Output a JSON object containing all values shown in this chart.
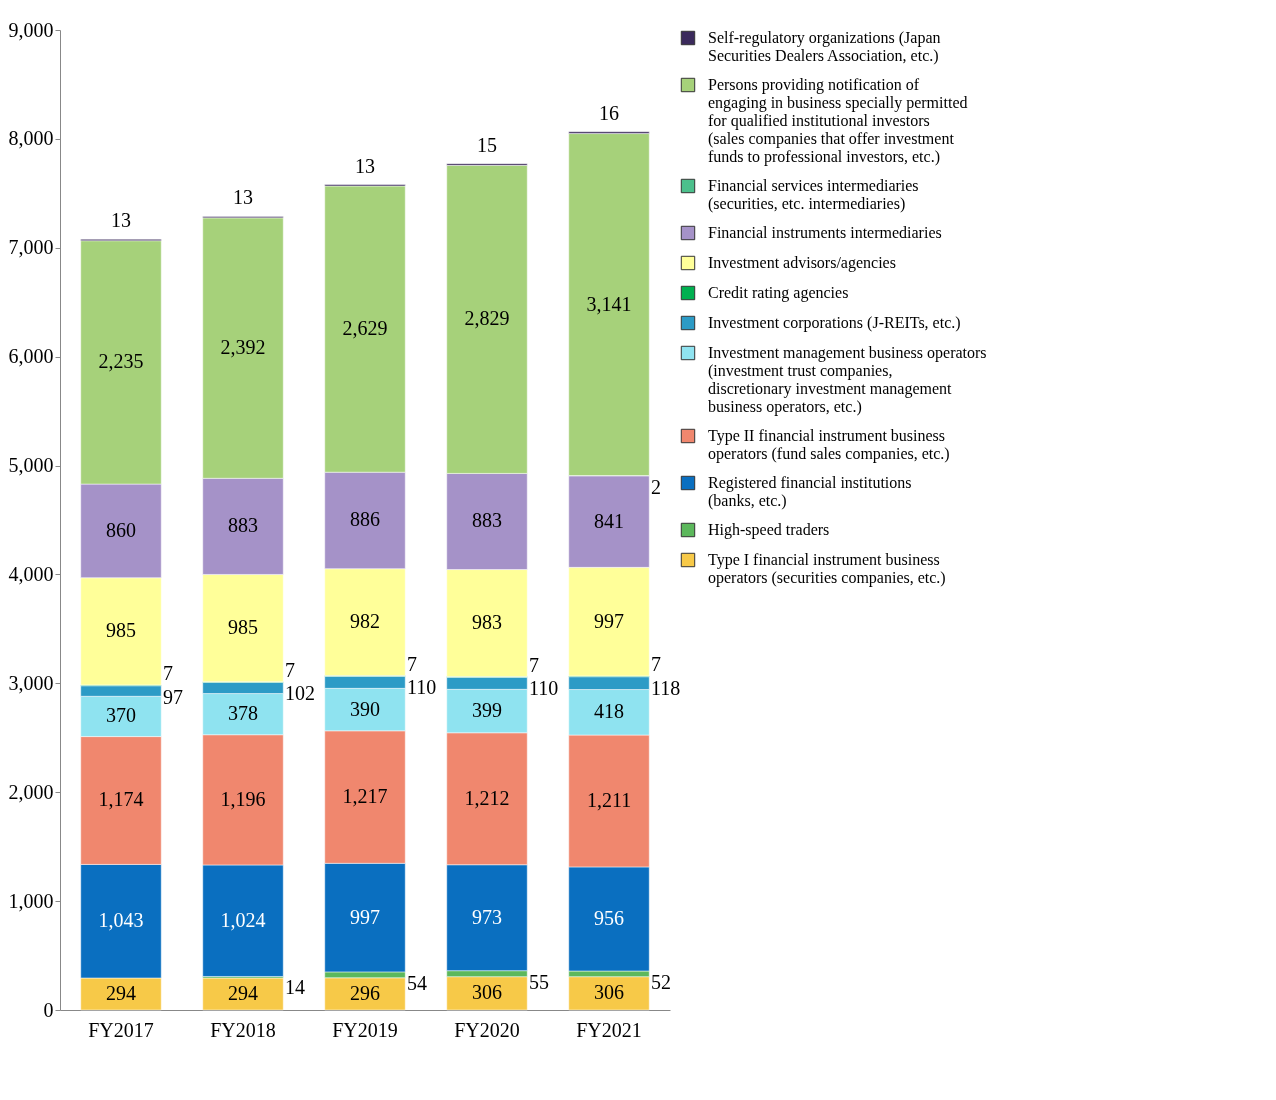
{
  "chart_data": {
    "type": "bar",
    "stacked": true,
    "categories": [
      "FY2017",
      "FY2018",
      "FY2019",
      "FY2020",
      "FY2021"
    ],
    "ylim": [
      0,
      9000
    ],
    "yticks": [
      {
        "value": 0,
        "label": "0"
      },
      {
        "value": 1000,
        "label": "1,000"
      },
      {
        "value": 2000,
        "label": "2,000"
      },
      {
        "value": 3000,
        "label": "3,000"
      },
      {
        "value": 4000,
        "label": "4,000"
      },
      {
        "value": 5000,
        "label": "5,000"
      },
      {
        "value": 6000,
        "label": "6,000"
      },
      {
        "value": 7000,
        "label": "7,000"
      },
      {
        "value": 8000,
        "label": "8,000"
      },
      {
        "value": 9000,
        "label": "9,000"
      }
    ],
    "legend": "right",
    "series": [
      {
        "name": "Type I financial instrument business operators (securities companies, etc.)",
        "color": "#f7c948",
        "values": [
          294,
          294,
          296,
          306,
          306
        ],
        "value_labels": [
          "294",
          "294",
          "296",
          "306",
          "306"
        ]
      },
      {
        "name": "High-speed traders",
        "color": "#5cb85c",
        "values": [
          null,
          14,
          54,
          55,
          52
        ],
        "value_labels": [
          null,
          "14",
          "54",
          "55",
          "52"
        ]
      },
      {
        "name": "Registered financial institutions (banks, etc.)",
        "color": "#0a6fc0",
        "values": [
          1043,
          1024,
          997,
          973,
          956
        ],
        "value_labels": [
          "1,043",
          "1,024",
          "997",
          "973",
          "956"
        ]
      },
      {
        "name": "Type II financial instrument business operators (fund sales companies, etc.)",
        "color": "#f0876e",
        "values": [
          1174,
          1196,
          1217,
          1212,
          1211
        ],
        "value_labels": [
          "1,174",
          "1,196",
          "1,217",
          "1,212",
          "1,211"
        ]
      },
      {
        "name": "Investment management business operators (investment trust companies, discretionary investment management business operators, etc.)",
        "color": "#8fe3f0",
        "values": [
          370,
          378,
          390,
          399,
          418
        ],
        "value_labels": [
          "370",
          "378",
          "390",
          "399",
          "418"
        ]
      },
      {
        "name": "Investment corporations (J-REITs, etc.)",
        "color": "#2c9bc6",
        "values": [
          97,
          102,
          110,
          110,
          118
        ],
        "value_labels": [
          "97",
          "102",
          "110",
          "110",
          "118"
        ]
      },
      {
        "name": "Credit rating agencies",
        "color": "#00b050",
        "values": [
          7,
          7,
          7,
          7,
          7
        ],
        "value_labels": [
          "7",
          "7",
          "7",
          "7",
          "7"
        ]
      },
      {
        "name": "Investment advisors/agencies",
        "color": "#ffff99",
        "values": [
          985,
          985,
          982,
          983,
          997
        ],
        "value_labels": [
          "985",
          "985",
          "982",
          "983",
          "997"
        ]
      },
      {
        "name": "Financial instruments intermediaries",
        "color": "#a592c8",
        "values": [
          860,
          883,
          886,
          883,
          841
        ],
        "value_labels": [
          "860",
          "883",
          "886",
          "883",
          "841"
        ]
      },
      {
        "name": "Financial services intermediaries (securities, etc. intermediaries)",
        "color": "#4cc08c",
        "values": [
          null,
          null,
          null,
          null,
          2
        ],
        "value_labels": [
          null,
          null,
          null,
          null,
          "2"
        ]
      },
      {
        "name": "Persons providing notification of engaging in business specially permitted for qualified institutional investors (sales companies that offer investment funds to professional investors, etc.)",
        "color": "#a6d17a",
        "values": [
          2235,
          2392,
          2629,
          2829,
          3141
        ],
        "value_labels": [
          "2,235",
          "2,392",
          "2,629",
          "2,829",
          "3,141"
        ]
      },
      {
        "name": "Self-regulatory organizations (Japan Securities Dealers Association, etc.)",
        "color": "#3b2a5c",
        "values": [
          13,
          13,
          13,
          15,
          16
        ],
        "value_labels": [
          "13",
          "13",
          "13",
          "15",
          "16"
        ]
      }
    ]
  }
}
